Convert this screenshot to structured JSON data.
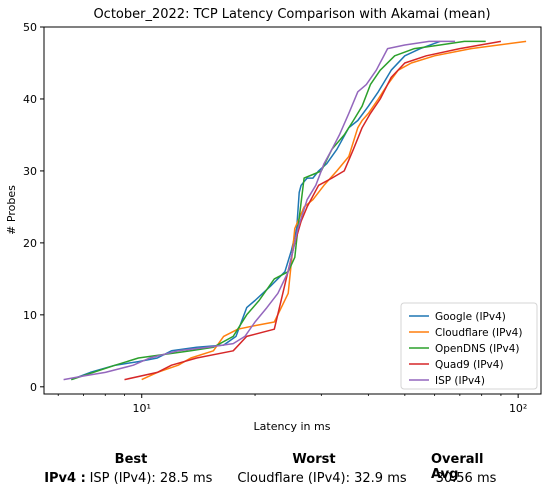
{
  "chart_data": {
    "type": "line",
    "title": "October_2022: TCP Latency Comparison with Akamai (mean)",
    "xlabel": "Latency in ms",
    "ylabel": "# Probes",
    "xscale": "log",
    "xlim": [
      5.5,
      115
    ],
    "ylim": [
      -1,
      50
    ],
    "x_ticks": [
      {
        "value": 10,
        "label": "10¹"
      },
      {
        "value": 100,
        "label": "10²"
      }
    ],
    "y_ticks": [
      0,
      10,
      20,
      30,
      40,
      50
    ],
    "grid": false,
    "legend_position": "lower-right",
    "series": [
      {
        "name": "Google (IPv4)",
        "color": "#1f77b4",
        "x": [
          6.5,
          7.3,
          8.5,
          9.8,
          11.0,
          12.0,
          14.0,
          16.5,
          17.8,
          19.0,
          20.0,
          22.0,
          24.0,
          25.0,
          25.8,
          26.2,
          26.5,
          27.0,
          27.5,
          28.5,
          29.5,
          31.0,
          33.0,
          35.5,
          37.5,
          40.0,
          42.5,
          46.0,
          50.0,
          55.0,
          62.0
        ],
        "y": [
          1,
          2,
          3,
          3.5,
          4,
          5,
          5.5,
          5.8,
          7,
          11,
          12,
          14,
          16,
          19,
          22,
          27,
          28,
          28.5,
          29,
          29,
          30,
          31,
          33,
          36,
          37,
          39,
          41,
          44,
          46,
          47,
          48
        ]
      },
      {
        "name": "Cloudflare (IPv4)",
        "color": "#ff7f0e",
        "x": [
          10.0,
          11.0,
          12.5,
          13.5,
          15.5,
          16.5,
          18.0,
          20.0,
          22.5,
          24.5,
          25.5,
          27.0,
          28.5,
          30.5,
          33.0,
          35.5,
          37.5,
          38.5,
          40.0,
          42.5,
          45.0,
          48.0,
          52.0,
          60.0,
          75.0,
          105.0
        ],
        "y": [
          1,
          2,
          3,
          4,
          5,
          7,
          8,
          8.5,
          9,
          13,
          22,
          25,
          26,
          28,
          30,
          32,
          36,
          37,
          38,
          40,
          42,
          44,
          45,
          46,
          47,
          48
        ]
      },
      {
        "name": "OpenDNS (IPv4)",
        "color": "#2ca02c",
        "x": [
          6.5,
          8.5,
          9.8,
          11.5,
          13.5,
          15.5,
          17.5,
          19.0,
          20.5,
          22.5,
          24.5,
          25.5,
          26.0,
          27.0,
          28.5,
          30.0,
          32.0,
          34.5,
          36.5,
          38.5,
          40.5,
          43.0,
          47.0,
          53.0,
          62.0,
          72.0,
          82.0
        ],
        "y": [
          1,
          3,
          4,
          4.5,
          5,
          5.5,
          7,
          10,
          12,
          15,
          16,
          18,
          22,
          29,
          29.5,
          30,
          33,
          35,
          37,
          39,
          42,
          44,
          46,
          47,
          47.5,
          48,
          48
        ]
      },
      {
        "name": "Quad9 (IPv4)",
        "color": "#d62728",
        "x": [
          9.0,
          11.0,
          12.0,
          14.0,
          17.5,
          19.0,
          22.5,
          25.5,
          26.5,
          27.5,
          29.5,
          32.0,
          34.5,
          36.5,
          38.5,
          40.5,
          43.0,
          46.0,
          50.0,
          57.0,
          70.0,
          90.0
        ],
        "y": [
          1,
          2,
          3,
          4,
          5,
          7,
          8,
          20,
          23,
          25,
          28,
          29,
          30,
          33,
          36,
          38,
          40,
          43,
          45,
          46,
          47,
          48
        ]
      },
      {
        "name": "ISP (IPv4)",
        "color": "#9467bd",
        "x": [
          6.2,
          7.0,
          8.0,
          9.5,
          10.5,
          12.5,
          15.0,
          17.5,
          18.8,
          20.0,
          21.5,
          23.0,
          24.5,
          26.0,
          27.5,
          29.0,
          30.5,
          32.0,
          33.5,
          35.5,
          37.5,
          39.5,
          42.0,
          45.0,
          50.0,
          58.0,
          68.0
        ],
        "y": [
          1,
          1.5,
          2,
          3,
          4,
          5,
          5.5,
          6,
          7,
          9,
          11,
          13,
          16,
          22,
          26,
          28,
          31,
          33,
          35,
          38,
          41,
          42,
          44,
          47,
          47.5,
          48,
          48
        ]
      }
    ]
  },
  "summary": {
    "best_header": "Best",
    "worst_header": "Worst",
    "avg_header": "Overall Avg",
    "row_label": "IPv4 :",
    "best_value": "ISP (IPv4): 28.5 ms",
    "worst_value": "Cloudflare (IPv4): 32.9 ms",
    "avg_value": "30.56 ms"
  }
}
